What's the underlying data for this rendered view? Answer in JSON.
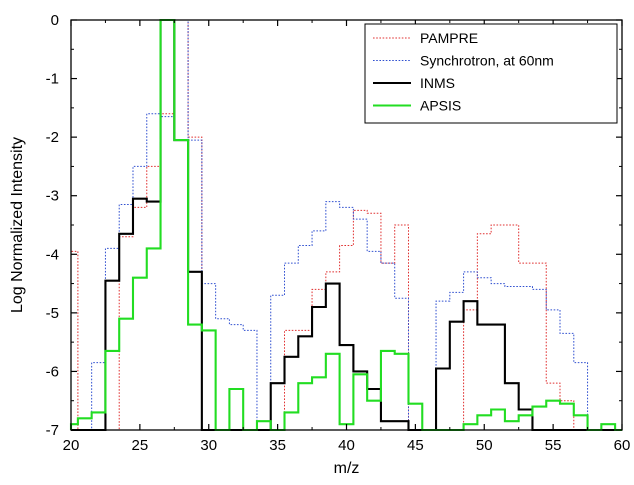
{
  "chart_data": {
    "type": "line",
    "xlabel": "m/z",
    "ylabel": "Log Normalized Intensity",
    "xlim": [
      20,
      60
    ],
    "ylim": [
      -7,
      0
    ],
    "x_ticks": [
      "20",
      "25",
      "30",
      "35",
      "40",
      "45",
      "50",
      "55",
      "60"
    ],
    "y_ticks": [
      "0",
      "-1",
      "-2",
      "-3",
      "-4",
      "-5",
      "-6",
      "-7"
    ],
    "grid": false,
    "legend_position": "top-right",
    "series": [
      {
        "name": "PAMPRE",
        "color": "#e03030",
        "style": "dotted",
        "x": [
          20,
          21,
          22,
          23,
          24,
          25,
          26,
          27,
          28,
          29,
          30,
          31,
          32,
          33,
          34,
          35,
          36,
          37,
          38,
          39,
          40,
          41,
          42,
          43,
          44,
          45,
          46,
          47,
          48,
          49,
          50,
          51,
          52,
          53,
          54,
          55,
          56,
          57,
          58,
          59,
          60
        ],
        "y": [
          -3.95,
          -7,
          -7,
          -7,
          -3.7,
          -3.2,
          -2.5,
          -1.6,
          0,
          -2,
          -7,
          -7,
          -7,
          -7,
          -7,
          -7,
          -5.3,
          -5.3,
          -4.6,
          -4.3,
          -3.85,
          -3.25,
          -3.3,
          -4.15,
          -3.5,
          -7,
          -7,
          -7,
          -7,
          -4.95,
          -3.65,
          -3.5,
          -3.5,
          -4.15,
          -4.15,
          -6.2,
          -6.5,
          -7,
          -7,
          -7,
          -7
        ]
      },
      {
        "name": "Synchrotron, at 60nm",
        "color": "#3050d0",
        "style": "dotted",
        "x": [
          20,
          21,
          22,
          23,
          24,
          25,
          26,
          27,
          28,
          29,
          30,
          31,
          32,
          33,
          34,
          35,
          36,
          37,
          38,
          39,
          40,
          41,
          42,
          43,
          44,
          45,
          46,
          47,
          48,
          49,
          50,
          51,
          52,
          53,
          54,
          55,
          56,
          57,
          58,
          59,
          60
        ],
        "y": [
          -7,
          -7,
          -5.85,
          -3.9,
          -3.15,
          -2.5,
          -1.6,
          -1.65,
          0,
          -2.05,
          -4.5,
          -5.1,
          -5.2,
          -5.3,
          -7,
          -4.7,
          -4.15,
          -3.85,
          -3.6,
          -3.1,
          -3.2,
          -3.4,
          -3.95,
          -4.15,
          -4.75,
          -7,
          -7,
          -4.8,
          -4.65,
          -4.3,
          -4.4,
          -4.5,
          -4.55,
          -4.55,
          -4.6,
          -4.95,
          -5.35,
          -5.85,
          -7,
          -7,
          -7
        ]
      },
      {
        "name": "INMS",
        "color": "#000000",
        "style": "solid",
        "x": [
          20,
          21,
          22,
          23,
          24,
          25,
          26,
          27,
          28,
          29,
          30,
          31,
          32,
          33,
          34,
          35,
          36,
          37,
          38,
          39,
          40,
          41,
          42,
          43,
          44,
          45,
          46,
          47,
          48,
          49,
          50,
          51,
          52,
          53,
          54,
          55,
          56,
          57,
          58,
          59,
          60
        ],
        "y": [
          -7,
          -7,
          -7,
          -4.45,
          -3.65,
          -3.05,
          -3.1,
          0,
          -2.05,
          -4.3,
          -7,
          -7,
          -7,
          -7,
          -7,
          -6.2,
          -5.75,
          -5.4,
          -4.9,
          -4.5,
          -5.55,
          -6,
          -6.3,
          -6.85,
          -6.85,
          -7,
          -7,
          -5.95,
          -5.15,
          -4.8,
          -5.2,
          -5.2,
          -6.2,
          -6.65,
          -7,
          -7,
          -7,
          -7,
          -7,
          -7,
          -7
        ]
      },
      {
        "name": "APSIS",
        "color": "#22dd22",
        "style": "solid",
        "x": [
          20,
          21,
          22,
          23,
          24,
          25,
          26,
          27,
          28,
          29,
          30,
          31,
          32,
          33,
          34,
          35,
          36,
          37,
          38,
          39,
          40,
          41,
          42,
          43,
          44,
          45,
          46,
          47,
          48,
          49,
          50,
          51,
          52,
          53,
          54,
          55,
          56,
          57,
          58,
          59,
          60
        ],
        "y": [
          -6.9,
          -6.8,
          -6.7,
          -5.65,
          -5.1,
          -4.4,
          -3.9,
          0,
          -2.05,
          -5.2,
          -5.3,
          -7,
          -6.3,
          -7,
          -6.85,
          -7,
          -6.7,
          -6.2,
          -6.1,
          -5.7,
          -6.9,
          -6.05,
          -6.5,
          -5.65,
          -5.7,
          -6.55,
          -7,
          -7,
          -7,
          -6.9,
          -6.75,
          -6.65,
          -6.85,
          -6.75,
          -6.6,
          -6.5,
          -6.55,
          -6.75,
          -7,
          -6.9,
          -7
        ]
      }
    ]
  }
}
